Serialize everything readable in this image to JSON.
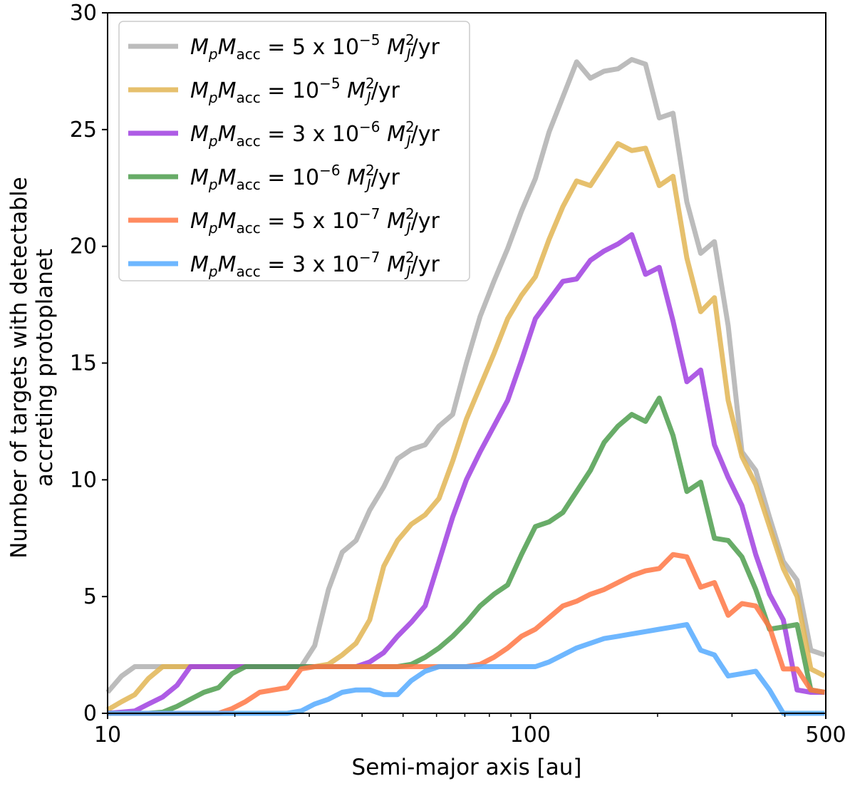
{
  "chart_data": {
    "type": "line",
    "title": "",
    "xlabel": "Semi-major axis [au]",
    "ylabel": "Number of targets with detectable accreting protoplanet",
    "ylabel_lines": [
      "Number of targets with detectable",
      "accreting protoplanet"
    ],
    "xscale": "log",
    "xlim": [
      10,
      500
    ],
    "ylim": [
      0,
      30
    ],
    "x_ticks": [
      10,
      100,
      500
    ],
    "x_tick_labels": [
      "10",
      "100",
      "500"
    ],
    "y_ticks": [
      0,
      5,
      10,
      15,
      20,
      25,
      30
    ],
    "y_tick_labels": [
      "0",
      "5",
      "10",
      "15",
      "20",
      "25",
      "30"
    ],
    "grid": false,
    "legend_position": "top-left",
    "x": [
      10,
      10.8,
      11.6,
      12.5,
      13.5,
      14.6,
      15.7,
      16.9,
      18.3,
      19.7,
      21.2,
      22.9,
      24.7,
      26.6,
      28.7,
      30.9,
      33.3,
      35.9,
      38.7,
      41.7,
      45.0,
      48.5,
      52.3,
      56.4,
      60.8,
      65.5,
      70.6,
      76.1,
      82.0,
      88.4,
      95.3,
      102.8,
      110.8,
      119.4,
      128.7,
      138.7,
      149.5,
      161.2,
      173.8,
      187.3,
      201.9,
      217.6,
      234.6,
      252.9,
      272.6,
      293.8,
      316.7,
      341.4,
      368.0,
      396.7,
      427.6,
      460.9,
      496.9
    ],
    "series": [
      {
        "name": "5 x 10^-5",
        "label_prefix": "5 x 10",
        "exponent": "−5",
        "color": "#b0b0b0",
        "values": [
          0.9,
          1.6,
          2.0,
          2.0,
          2.0,
          2.0,
          2.0,
          2.0,
          2.0,
          2.0,
          2.0,
          2.0,
          2.0,
          2.0,
          2.0,
          2.9,
          5.3,
          6.9,
          7.4,
          8.7,
          9.7,
          10.9,
          11.3,
          11.5,
          12.3,
          12.8,
          15.0,
          17.0,
          18.5,
          19.9,
          21.5,
          22.9,
          24.9,
          26.4,
          27.9,
          27.2,
          27.5,
          27.6,
          28.0,
          27.8,
          25.5,
          25.7,
          21.9,
          19.7,
          20.2,
          16.6,
          11.2,
          10.4,
          8.4,
          6.5,
          5.7,
          2.7,
          2.5
        ]
      },
      {
        "name": "10^-5",
        "label_prefix": "10",
        "exponent": "−5",
        "color": "#e2b553",
        "values": [
          0.15,
          0.5,
          0.8,
          1.5,
          2.0,
          2.0,
          2.0,
          2.0,
          2.0,
          2.0,
          2.0,
          2.0,
          2.0,
          2.0,
          2.0,
          2.0,
          2.1,
          2.5,
          3.0,
          4.0,
          6.3,
          7.4,
          8.1,
          8.5,
          9.2,
          10.8,
          12.6,
          14.0,
          15.4,
          16.9,
          17.9,
          18.7,
          20.3,
          21.7,
          22.8,
          22.6,
          23.5,
          24.4,
          24.1,
          24.2,
          22.6,
          23.0,
          19.5,
          17.2,
          17.8,
          13.4,
          11.0,
          9.8,
          8.0,
          6.2,
          5.0,
          1.9,
          1.6
        ]
      },
      {
        "name": "3 x 10^-6",
        "label_prefix": "3 x 10",
        "exponent": "−6",
        "color": "#a040e0",
        "values": [
          0.0,
          0.05,
          0.1,
          0.4,
          0.7,
          1.2,
          2.0,
          2.0,
          2.0,
          2.0,
          2.0,
          2.0,
          2.0,
          2.0,
          2.0,
          2.0,
          2.0,
          2.0,
          2.0,
          2.2,
          2.6,
          3.3,
          3.9,
          4.6,
          6.5,
          8.4,
          10.0,
          11.2,
          12.3,
          13.4,
          15.1,
          16.9,
          17.7,
          18.5,
          18.6,
          19.4,
          19.8,
          20.1,
          20.5,
          18.8,
          19.1,
          16.8,
          14.2,
          14.7,
          11.5,
          10.1,
          8.9,
          6.8,
          5.1,
          4.0,
          1.0,
          0.9,
          0.9
        ]
      },
      {
        "name": "10^-6",
        "label_prefix": "10",
        "exponent": "−6",
        "color": "#4e9e4e",
        "values": [
          0.0,
          0.0,
          0.0,
          0.0,
          0.05,
          0.3,
          0.6,
          0.9,
          1.1,
          1.7,
          2.0,
          2.0,
          2.0,
          2.0,
          2.0,
          2.0,
          2.0,
          2.0,
          2.0,
          2.0,
          2.0,
          2.0,
          2.1,
          2.4,
          2.8,
          3.3,
          3.9,
          4.6,
          5.1,
          5.5,
          6.8,
          8.0,
          8.2,
          8.6,
          9.5,
          10.4,
          11.6,
          12.3,
          12.8,
          12.5,
          13.5,
          11.9,
          9.5,
          9.9,
          7.5,
          7.4,
          6.7,
          5.3,
          3.6,
          3.7,
          3.8,
          1.0,
          0.9
        ]
      },
      {
        "name": "5 x 10^-7",
        "label_prefix": "5 x 10",
        "exponent": "−7",
        "color": "#ff7744",
        "values": [
          0.0,
          0.0,
          0.0,
          0.0,
          0.0,
          0.0,
          0.0,
          0.0,
          0.0,
          0.2,
          0.5,
          0.9,
          1.0,
          1.1,
          1.9,
          2.0,
          2.0,
          2.0,
          2.0,
          2.0,
          2.0,
          2.0,
          2.0,
          2.0,
          2.0,
          2.0,
          2.0,
          2.1,
          2.4,
          2.8,
          3.3,
          3.6,
          4.1,
          4.6,
          4.8,
          5.1,
          5.3,
          5.6,
          5.9,
          6.1,
          6.2,
          6.8,
          6.7,
          5.4,
          5.6,
          4.2,
          4.7,
          4.6,
          3.7,
          1.9,
          1.9,
          1.0,
          0.9
        ]
      },
      {
        "name": "3 x 10^-7",
        "label_prefix": "3 x 10",
        "exponent": "−7",
        "color": "#55aaff",
        "values": [
          0.0,
          0.0,
          0.0,
          0.0,
          0.0,
          0.0,
          0.0,
          0.0,
          0.0,
          0.0,
          0.0,
          0.0,
          0.0,
          0.0,
          0.1,
          0.4,
          0.6,
          0.9,
          1.0,
          1.0,
          0.8,
          0.8,
          1.4,
          1.8,
          2.0,
          2.0,
          2.0,
          2.0,
          2.0,
          2.0,
          2.0,
          2.0,
          2.2,
          2.5,
          2.8,
          3.0,
          3.2,
          3.3,
          3.4,
          3.5,
          3.6,
          3.7,
          3.8,
          2.7,
          2.5,
          1.6,
          1.7,
          1.8,
          1.0,
          0.0,
          0.0,
          0.0,
          0.0
        ]
      }
    ],
    "legend_math": {
      "mp": "M",
      "mp_sub": "p",
      "macc": "M",
      "macc_sub": "acc",
      "equals": " = ",
      "unit_m": "M",
      "unit_sub": "J",
      "unit_sup": "2",
      "unit_tail": "/yr"
    }
  }
}
